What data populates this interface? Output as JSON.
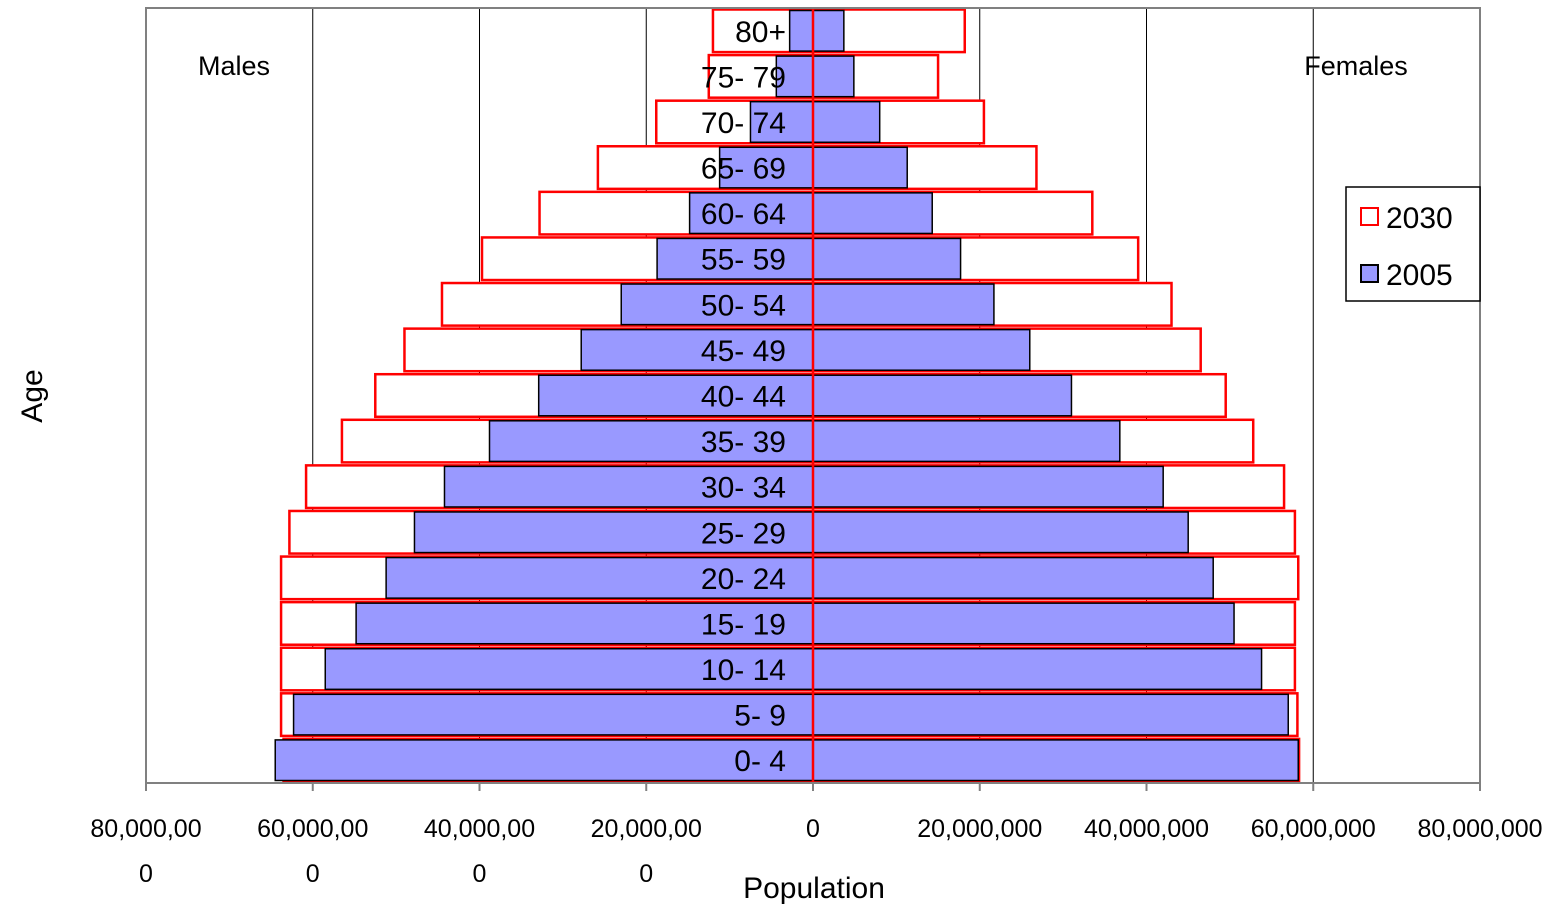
{
  "chart_data": {
    "type": "bar",
    "orientation": "horizontal",
    "subtype": "population-pyramid",
    "xlabel": "Population",
    "ylabel": "Age",
    "left_label": "Males",
    "right_label": "Females",
    "xlim": [
      -80000000,
      80000000
    ],
    "x_ticks": [
      {
        "value": -80000000,
        "label": "80,000,00\n0"
      },
      {
        "value": -60000000,
        "label": "60,000,00\n0"
      },
      {
        "value": -40000000,
        "label": "40,000,00\n0"
      },
      {
        "value": -20000000,
        "label": "20,000,00\n0"
      },
      {
        "value": 0,
        "label": "0"
      },
      {
        "value": 20000000,
        "label": "20,000,000"
      },
      {
        "value": 40000000,
        "label": "40,000,000"
      },
      {
        "value": 60000000,
        "label": "60,000,000"
      },
      {
        "value": 80000000,
        "label": "80,000,000"
      }
    ],
    "grid": "vertical major gridlines",
    "legend": "right",
    "categories": [
      "0- 4",
      "5- 9",
      "10- 14",
      "15- 19",
      "20- 24",
      "25- 29",
      "30- 34",
      "35- 39",
      "40- 44",
      "45- 49",
      "50- 54",
      "55- 59",
      "60- 64",
      "65- 69",
      "70- 74",
      "75- 79",
      "80+"
    ],
    "series": [
      {
        "name": "2030",
        "style": "outline",
        "color": "#FF0000",
        "males": [
          63500000,
          63800000,
          63800000,
          63800000,
          63800000,
          62800000,
          60800000,
          56500000,
          52500000,
          49000000,
          44500000,
          39700000,
          32800000,
          25800000,
          18800000,
          12500000,
          12000000
        ],
        "females": [
          58300000,
          58100000,
          57800000,
          57800000,
          58200000,
          57800000,
          56500000,
          52800000,
          49500000,
          46500000,
          43000000,
          39000000,
          33500000,
          26800000,
          20500000,
          15000000,
          18200000
        ]
      },
      {
        "name": "2005",
        "style": "filled",
        "color": "#9999FF",
        "males": [
          64500000,
          62300000,
          58500000,
          54800000,
          51200000,
          47800000,
          44200000,
          38800000,
          32900000,
          27800000,
          23000000,
          18700000,
          14800000,
          11200000,
          7500000,
          4400000,
          2800000
        ],
        "females": [
          58200000,
          57000000,
          53800000,
          50500000,
          48000000,
          45000000,
          42000000,
          36800000,
          31000000,
          26000000,
          21700000,
          17700000,
          14300000,
          11300000,
          8000000,
          4900000,
          3700000
        ]
      }
    ]
  },
  "colors": {
    "outline_series": "#FF0000",
    "filled_series": "#9999FF",
    "plot_border": "#808080",
    "gridline": "#000000"
  }
}
